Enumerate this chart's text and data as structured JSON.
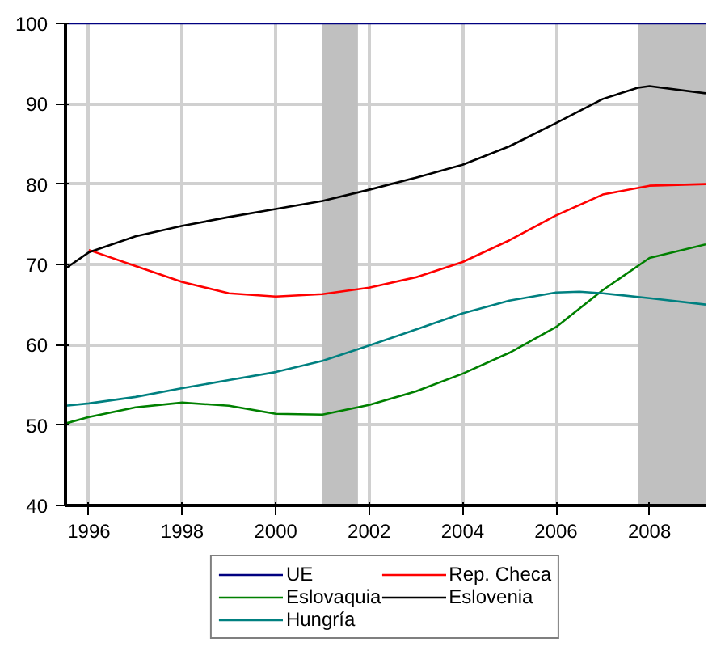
{
  "chart_data": {
    "type": "line",
    "xlim": [
      1995.5,
      2009.2
    ],
    "xticks": [
      1996,
      1998,
      2000,
      2002,
      2004,
      2006,
      2008
    ],
    "ylim": [
      40,
      100
    ],
    "yticks": [
      40,
      50,
      60,
      70,
      80,
      90,
      100
    ],
    "grid": true,
    "legend": "bottom",
    "line_style": "solid",
    "bands": [
      {
        "axis": "x",
        "from": 2001.0,
        "to": 2001.76,
        "color": "#c0c0c0"
      },
      {
        "axis": "x",
        "from": 2007.76,
        "to": 2009.2,
        "color": "#c0c0c0"
      }
    ],
    "series": [
      {
        "name": "UE",
        "color": "#000080",
        "x": [
          1995.5,
          2009.2
        ],
        "values": [
          100,
          100
        ]
      },
      {
        "name": "Rep. Checa",
        "color": "#ff0000",
        "x": [
          1996,
          1997,
          1998,
          1999,
          2000,
          2001,
          2002,
          2003,
          2004,
          2005,
          2006,
          2007,
          2008,
          2009.2
        ],
        "values": [
          71.8,
          69.8,
          67.8,
          66.4,
          66.0,
          66.3,
          67.1,
          68.4,
          70.3,
          73.0,
          76.1,
          78.7,
          79.8,
          80.0
        ]
      },
      {
        "name": "Eslovaquia",
        "color": "#008000",
        "x": [
          1995.5,
          1996,
          1997,
          1998,
          1999,
          2000,
          2001,
          2002,
          2003,
          2004,
          2005,
          2006,
          2007,
          2008,
          2009.2
        ],
        "values": [
          50.2,
          51.0,
          52.2,
          52.8,
          52.4,
          51.4,
          51.3,
          52.5,
          54.2,
          56.4,
          59.0,
          62.2,
          66.8,
          70.8,
          72.5
        ]
      },
      {
        "name": "Eslovenia",
        "color": "#000000",
        "x": [
          1995.5,
          1996,
          1997,
          1998,
          1999,
          2000,
          2001,
          2002,
          2003,
          2004,
          2005,
          2006,
          2007,
          2007.75,
          2008,
          2009.2
        ],
        "values": [
          69.5,
          71.5,
          73.5,
          74.8,
          75.9,
          76.9,
          77.9,
          79.3,
          80.8,
          82.4,
          84.7,
          87.6,
          90.6,
          92.0,
          92.2,
          91.3
        ]
      },
      {
        "name": "Hungría",
        "color": "#008080",
        "x": [
          1995.5,
          1996,
          1997,
          1998,
          1999,
          2000,
          2001,
          2002,
          2003,
          2004,
          2005,
          2006,
          2006.5,
          2007,
          2008,
          2009.2
        ],
        "values": [
          52.4,
          52.7,
          53.5,
          54.6,
          55.6,
          56.6,
          58.0,
          59.9,
          61.9,
          63.9,
          65.5,
          66.5,
          66.6,
          66.4,
          65.8,
          65.0
        ]
      }
    ]
  }
}
